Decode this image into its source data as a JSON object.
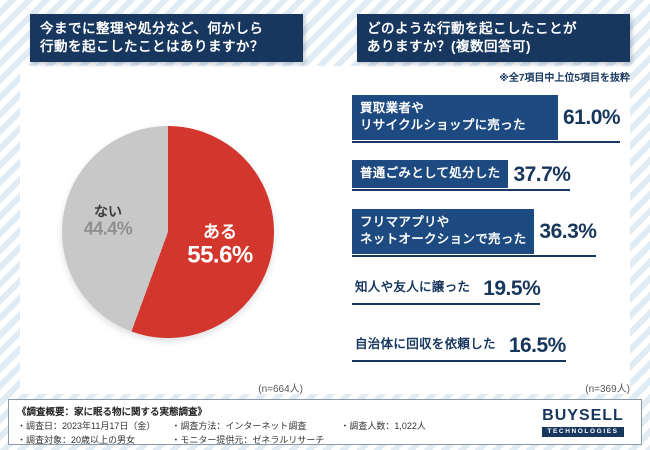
{
  "colors": {
    "navy": "#17375e",
    "bar_blue": "#1d4a80",
    "pie_red": "#d3362d",
    "pie_gray": "#c8c8c8",
    "stripe_blue": "#e1ebf4"
  },
  "header_left": {
    "line1": "今までに整理や処分など、何かしら",
    "line2": "行動を起こしたことはありますか？"
  },
  "header_right": {
    "line1": "どのような行動を起こしたことが",
    "line2": "ありますか？(複数回答可)"
  },
  "note": "※全7項目中上位5項目を抜粋",
  "pie": {
    "labels": [
      "ある",
      "ない"
    ],
    "values": [
      55.6,
      44.4
    ],
    "display": [
      "55.6%",
      "44.4%"
    ],
    "colors": [
      "#d3362d",
      "#c8c8c8"
    ],
    "n_label": "(n=664人)"
  },
  "bars": {
    "rows": [
      {
        "label": "買取業者や\nリサイクルショップに売った",
        "value": 61.0,
        "display": "61.0%",
        "style": "blue"
      },
      {
        "label": "普通ごみとして処分した",
        "value": 37.7,
        "display": "37.7%",
        "style": "blue"
      },
      {
        "label": "フリマアプリや\nネットオークションで売った",
        "value": 36.3,
        "display": "36.3%",
        "style": "blue"
      },
      {
        "label": "知人や友人に譲った",
        "value": 19.5,
        "display": "19.5%",
        "style": "plain"
      },
      {
        "label": "自治体に回収を依頼した",
        "value": 16.5,
        "display": "16.5%",
        "style": "plain"
      }
    ],
    "n_label": "(n=369人)"
  },
  "chart_data": [
    {
      "type": "pie",
      "title": "今までに整理や処分など、何かしら行動を起こしたことはありますか？",
      "labels": [
        "ある",
        "ない"
      ],
      "values": [
        55.6,
        44.4
      ],
      "colors": [
        "#d3362d",
        "#c8c8c8"
      ],
      "sample_size_label": "(n=664人)"
    },
    {
      "type": "bar",
      "title": "どのような行動を起こしたことがありますか？(複数回答可)",
      "note": "※全7項目中上位5項目を抜粋",
      "categories": [
        "買取業者やリサイクルショップに売った",
        "普通ごみとして処分した",
        "フリマアプリやネットオークションで売った",
        "知人や友人に譲った",
        "自治体に回収を依頼した"
      ],
      "values": [
        61.0,
        37.7,
        36.3,
        19.5,
        16.5
      ],
      "unit": "%",
      "orientation": "horizontal",
      "sample_size_label": "(n=369人)"
    }
  ],
  "footer": {
    "overview": "《調査概要：家に眠る物に関する実態調査》",
    "col1": [
      "・調査日：2023年11月17日（金）",
      "・調査対象：20歳以上の男女"
    ],
    "col2": [
      "・調査方法：インターネット調査",
      "・モニター提供元：ゼネラルリサーチ"
    ],
    "col3": [
      "・調査人数：1,022人"
    ],
    "logo": {
      "top": "BUYSELL",
      "bottom": "TECHNOLOGIES"
    }
  }
}
